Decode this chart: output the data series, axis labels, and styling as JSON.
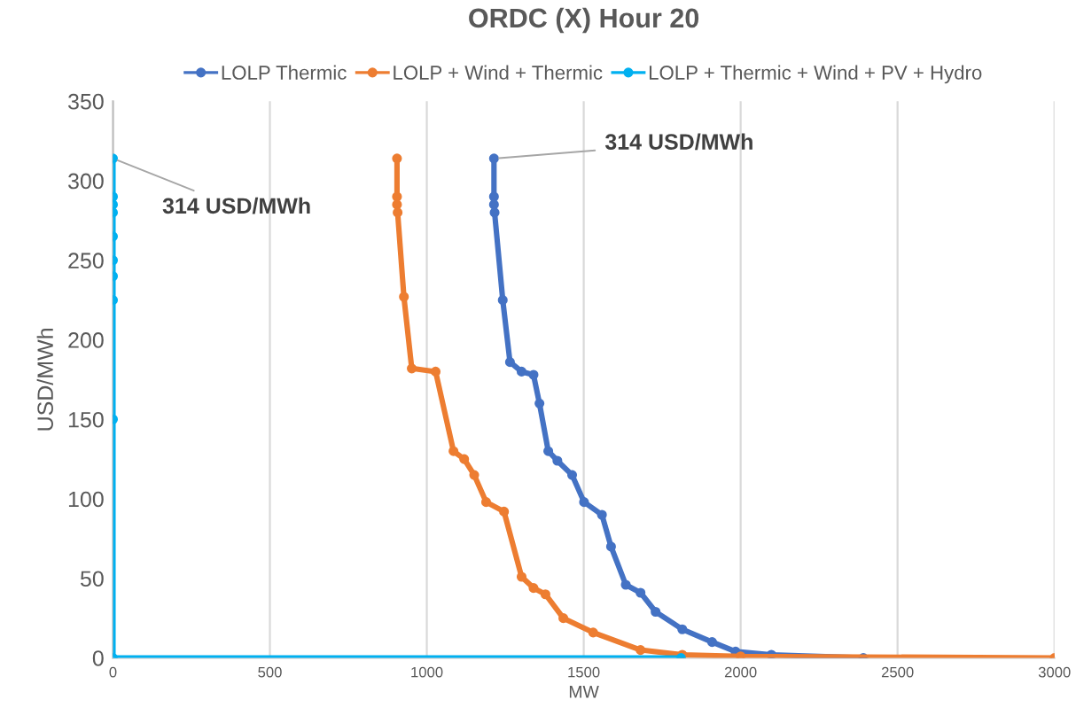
{
  "chart_data": {
    "type": "line",
    "title": "ORDC (X) Hour 20",
    "xlabel": "MW",
    "ylabel": "USD/MWh",
    "xlim": [
      0,
      3000
    ],
    "xticks": [
      0,
      500,
      1000,
      1500,
      2000,
      2500,
      3000
    ],
    "ylim": [
      0,
      350
    ],
    "yticks": [
      0,
      50,
      100,
      150,
      200,
      250,
      300,
      350
    ],
    "grid": "x",
    "legend": "top",
    "marker": "circle",
    "line_style": "solid",
    "annotations": [
      {
        "text": "314 USD/MWh",
        "x": 0,
        "y": 314
      },
      {
        "text": "314 USD/MWh",
        "x": 1214,
        "y": 314
      }
    ],
    "series": [
      {
        "name": "LOLP Thermic",
        "color": "#4472c4",
        "x": [
          1214,
          1214,
          1214,
          1216,
          1242,
          1265,
          1302,
          1340,
          1359,
          1387,
          1416,
          1463,
          1501,
          1558,
          1587,
          1634,
          1681,
          1729,
          1814,
          1909,
          1984,
          2098,
          2391
        ],
        "values": [
          314,
          290,
          285,
          280,
          225,
          186,
          180,
          178,
          160,
          130,
          124,
          115,
          98,
          90,
          70,
          46,
          41,
          29,
          18,
          10,
          4,
          2,
          0
        ]
      },
      {
        "name": "LOLP + Wind + Thermic",
        "color": "#ed7d31",
        "x": [
          905,
          905,
          905,
          907,
          927,
          952,
          1028,
          1085,
          1119,
          1151,
          1189,
          1246,
          1302,
          1340,
          1378,
          1435,
          1530,
          1681,
          1814,
          2000,
          3000
        ],
        "values": [
          314,
          290,
          285,
          280,
          227,
          182,
          180,
          130,
          125,
          115,
          98,
          92,
          51,
          44,
          40,
          25,
          16,
          5,
          2,
          1,
          0
        ]
      },
      {
        "name": "LOLP + Thermic + Wind + PV + Hydro",
        "color": "#00b0f0",
        "x": [
          0,
          0,
          0,
          0,
          0,
          0,
          0,
          0,
          0,
          0,
          1810
        ],
        "values": [
          314,
          290,
          285,
          280,
          265,
          250,
          240,
          225,
          150,
          0,
          0
        ]
      }
    ]
  }
}
